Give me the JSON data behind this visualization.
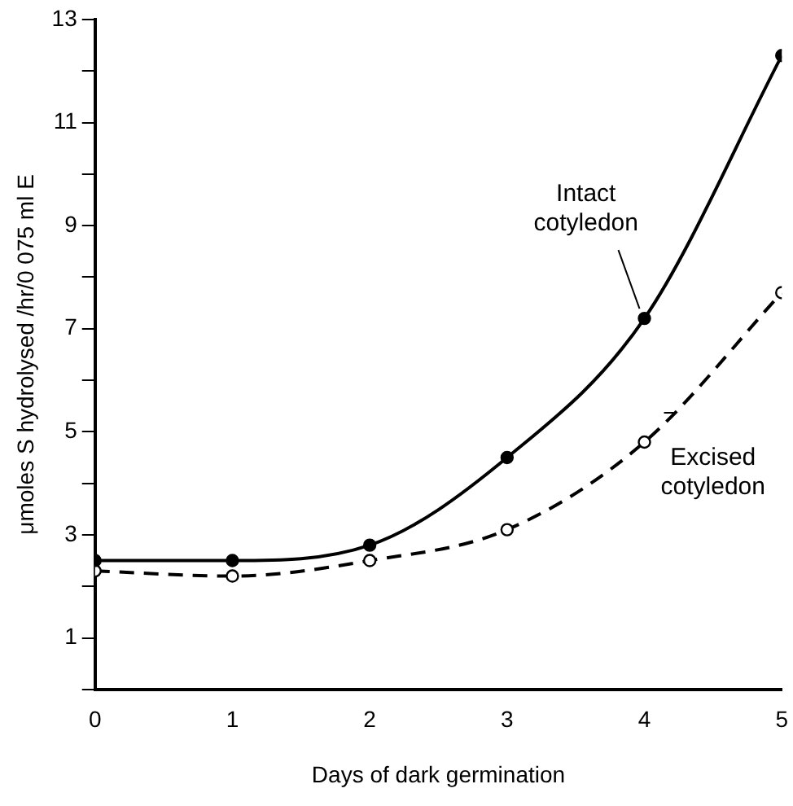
{
  "chart_data": {
    "type": "line",
    "xlabel": "Days of dark germination",
    "ylabel": "μmoles S hydrolysed /hr/0 075 ml E",
    "x": [
      0,
      1,
      2,
      3,
      4,
      5
    ],
    "series": [
      {
        "color": "#000000",
        "values": [
          2.5,
          2.5,
          2.8,
          4.5,
          7.2,
          12.3
        ],
        "line_style": "solid"
      },
      {
        "color": "#000000",
        "values": [
          2.3,
          2.2,
          2.5,
          3.1,
          4.8,
          7.7
        ],
        "line_style": "dashed"
      }
    ],
    "marker": "circle",
    "xlim": [
      0,
      5
    ],
    "xticks": [
      0,
      1,
      2,
      3,
      4,
      5
    ],
    "ylim": [
      0,
      13
    ],
    "yticks": [
      {
        "value": 0,
        "label": null
      },
      1,
      {
        "value": 2,
        "label": null
      },
      3,
      {
        "value": 4,
        "label": null
      },
      5,
      {
        "value": 6,
        "label": null
      },
      7,
      {
        "value": 8,
        "label": null
      },
      9,
      {
        "value": 10,
        "label": null
      },
      11,
      {
        "value": 12,
        "label": null
      },
      13
    ],
    "annotations": [
      {
        "text": "Intact\ncotyledon",
        "x": 4,
        "y": 7.2
      },
      {
        "text": "Excised\ncotyledon",
        "x": 4,
        "y": 4.8
      }
    ],
    "grid": false,
    "legend": false
  }
}
